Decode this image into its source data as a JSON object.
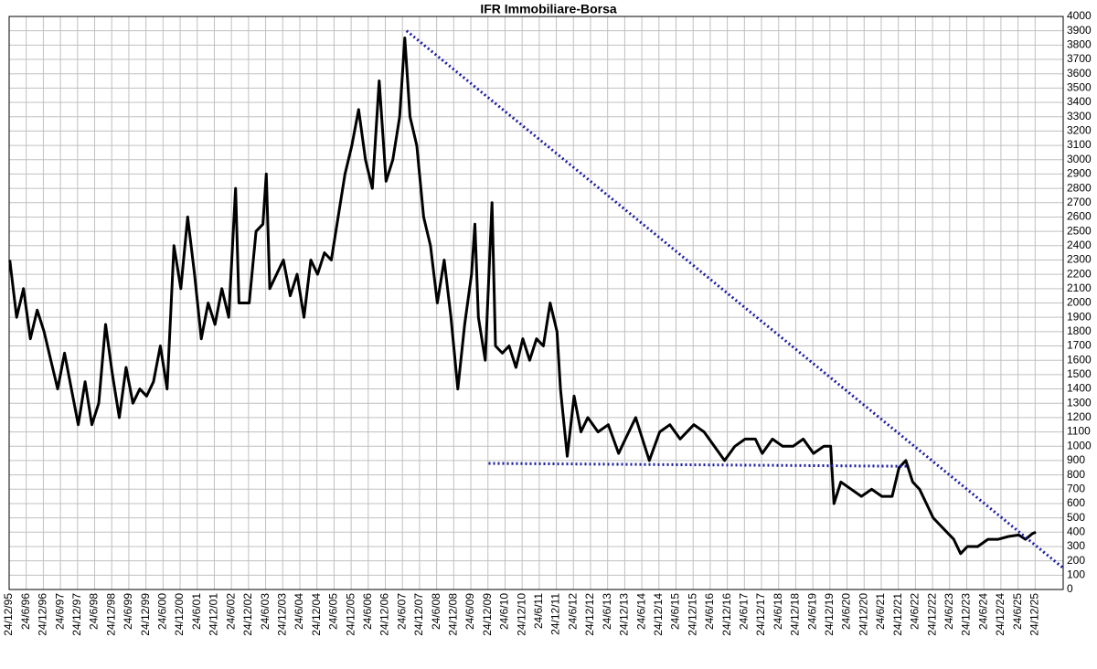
{
  "chart_data": {
    "type": "line",
    "title": "IFR Immobiliare-Borsa",
    "color": "#000000",
    "grid": true,
    "xlim": [
      1995.98,
      2026.8
    ],
    "ylim": [
      0,
      4000
    ],
    "yticks": [
      0,
      100,
      200,
      300,
      400,
      500,
      600,
      700,
      800,
      900,
      1000,
      1100,
      1200,
      1300,
      1400,
      1500,
      1600,
      1700,
      1800,
      1900,
      2000,
      2100,
      2200,
      2300,
      2400,
      2500,
      2600,
      2700,
      2800,
      2900,
      3000,
      3100,
      3200,
      3300,
      3400,
      3500,
      3600,
      3700,
      3800,
      3900,
      4000
    ],
    "xticks": [
      {
        "value": 1995.98,
        "label": "24/12/95"
      },
      {
        "value": 1996.48,
        "label": "24/6/96"
      },
      {
        "value": 1996.98,
        "label": "24/12/96"
      },
      {
        "value": 1997.48,
        "label": "24/6/97"
      },
      {
        "value": 1997.98,
        "label": "24/12/97"
      },
      {
        "value": 1998.48,
        "label": "24/6/98"
      },
      {
        "value": 1998.98,
        "label": "24/12/98"
      },
      {
        "value": 1999.48,
        "label": "24/6/99"
      },
      {
        "value": 1999.98,
        "label": "24/12/99"
      },
      {
        "value": 2000.48,
        "label": "24/6/00"
      },
      {
        "value": 2000.98,
        "label": "24/12/00"
      },
      {
        "value": 2001.48,
        "label": "24/6/01"
      },
      {
        "value": 2001.98,
        "label": "24/12/01"
      },
      {
        "value": 2002.48,
        "label": "24/6/02"
      },
      {
        "value": 2002.98,
        "label": "24/12/02"
      },
      {
        "value": 2003.48,
        "label": "24/6/03"
      },
      {
        "value": 2003.98,
        "label": "24/12/03"
      },
      {
        "value": 2004.48,
        "label": "24/6/04"
      },
      {
        "value": 2004.98,
        "label": "24/12/04"
      },
      {
        "value": 2005.48,
        "label": "24/6/05"
      },
      {
        "value": 2005.98,
        "label": "24/12/05"
      },
      {
        "value": 2006.48,
        "label": "24/6/06"
      },
      {
        "value": 2006.98,
        "label": "24/12/06"
      },
      {
        "value": 2007.48,
        "label": "24/6/07"
      },
      {
        "value": 2007.98,
        "label": "24/12/07"
      },
      {
        "value": 2008.48,
        "label": "24/6/08"
      },
      {
        "value": 2008.98,
        "label": "24/12/08"
      },
      {
        "value": 2009.48,
        "label": "24/6/09"
      },
      {
        "value": 2009.98,
        "label": "24/12/09"
      },
      {
        "value": 2010.48,
        "label": "24/6/10"
      },
      {
        "value": 2010.98,
        "label": "24/12/10"
      },
      {
        "value": 2011.48,
        "label": "24/6/11"
      },
      {
        "value": 2011.98,
        "label": "24/12/11"
      },
      {
        "value": 2012.48,
        "label": "24/6/12"
      },
      {
        "value": 2012.98,
        "label": "24/12/12"
      },
      {
        "value": 2013.48,
        "label": "24/6/13"
      },
      {
        "value": 2013.98,
        "label": "24/12/13"
      },
      {
        "value": 2014.48,
        "label": "24/6/14"
      },
      {
        "value": 2014.98,
        "label": "24/12/14"
      },
      {
        "value": 2015.48,
        "label": "24/6/15"
      },
      {
        "value": 2015.98,
        "label": "24/12/15"
      },
      {
        "value": 2016.48,
        "label": "24/6/16"
      },
      {
        "value": 2016.98,
        "label": "24/12/16"
      },
      {
        "value": 2017.48,
        "label": "24/6/17"
      },
      {
        "value": 2017.98,
        "label": "24/12/17"
      },
      {
        "value": 2018.48,
        "label": "24/6/18"
      },
      {
        "value": 2018.98,
        "label": "24/12/18"
      },
      {
        "value": 2019.48,
        "label": "24/6/19"
      },
      {
        "value": 2019.98,
        "label": "24/12/19"
      },
      {
        "value": 2020.48,
        "label": "24/6/20"
      },
      {
        "value": 2020.98,
        "label": "24/12/20"
      },
      {
        "value": 2021.48,
        "label": "24/6/21"
      },
      {
        "value": 2021.98,
        "label": "24/12/21"
      },
      {
        "value": 2022.48,
        "label": "24/6/22"
      },
      {
        "value": 2022.98,
        "label": "24/12/22"
      },
      {
        "value": 2023.48,
        "label": "24/6/23"
      },
      {
        "value": 2023.98,
        "label": "24/12/23"
      },
      {
        "value": 2024.48,
        "label": "24/6/24"
      },
      {
        "value": 2024.98,
        "label": "24/12/24"
      },
      {
        "value": 2025.48,
        "label": "24/6/25"
      },
      {
        "value": 2025.98,
        "label": "24/12/25"
      }
    ],
    "x": [
      1996.0,
      1996.2,
      1996.4,
      1996.6,
      1996.8,
      1997.0,
      1997.2,
      1997.4,
      1997.6,
      1997.8,
      1998.0,
      1998.2,
      1998.4,
      1998.6,
      1998.8,
      1999.0,
      1999.2,
      1999.4,
      1999.6,
      1999.8,
      2000.0,
      2000.2,
      2000.4,
      2000.6,
      2000.8,
      2001.0,
      2001.2,
      2001.4,
      2001.6,
      2001.8,
      2002.0,
      2002.2,
      2002.4,
      2002.6,
      2002.7,
      2003.0,
      2003.2,
      2003.4,
      2003.5,
      2003.6,
      2004.0,
      2004.2,
      2004.4,
      2004.6,
      2004.8,
      2005.0,
      2005.2,
      2005.4,
      2005.6,
      2005.8,
      2006.0,
      2006.2,
      2006.4,
      2006.6,
      2006.8,
      2007.0,
      2007.2,
      2007.4,
      2007.55,
      2007.7,
      2007.9,
      2008.1,
      2008.3,
      2008.5,
      2008.7,
      2008.9,
      2009.1,
      2009.3,
      2009.5,
      2009.6,
      2009.7,
      2009.9,
      2010.1,
      2010.2,
      2010.4,
      2010.6,
      2010.8,
      2011.0,
      2011.2,
      2011.4,
      2011.6,
      2011.8,
      2012.0,
      2012.1,
      2012.3,
      2012.5,
      2012.7,
      2012.9,
      2013.2,
      2013.5,
      2013.8,
      2014.0,
      2014.3,
      2014.5,
      2014.7,
      2015.0,
      2015.3,
      2015.6,
      2016.0,
      2016.3,
      2016.6,
      2016.9,
      2017.2,
      2017.5,
      2017.8,
      2018.0,
      2018.3,
      2018.6,
      2018.9,
      2019.2,
      2019.5,
      2019.8,
      2020.0,
      2020.1,
      2020.3,
      2020.6,
      2020.9,
      2021.2,
      2021.5,
      2021.8,
      2022.0,
      2022.2,
      2022.4,
      2022.6,
      2022.8,
      2023.0,
      2023.2,
      2023.4,
      2023.6,
      2023.8,
      2024.0,
      2024.3,
      2024.6,
      2024.9,
      2025.2,
      2025.5,
      2025.7,
      2025.9,
      2026.0
    ],
    "values": [
      2300,
      1900,
      2100,
      1750,
      1950,
      1800,
      1600,
      1400,
      1650,
      1400,
      1150,
      1450,
      1150,
      1300,
      1850,
      1500,
      1200,
      1550,
      1300,
      1400,
      1350,
      1450,
      1700,
      1400,
      2400,
      2100,
      2600,
      2200,
      1750,
      2000,
      1850,
      2100,
      1900,
      2800,
      2000,
      2000,
      2500,
      2550,
      2900,
      2100,
      2300,
      2050,
      2200,
      1900,
      2300,
      2200,
      2350,
      2300,
      2600,
      2900,
      3100,
      3350,
      3000,
      2800,
      3550,
      2850,
      3000,
      3300,
      3850,
      3300,
      3100,
      2600,
      2400,
      2000,
      2300,
      1900,
      1400,
      1850,
      2200,
      2550,
      1900,
      1600,
      2700,
      1700,
      1650,
      1700,
      1550,
      1750,
      1600,
      1750,
      1700,
      2000,
      1800,
      1400,
      930,
      1350,
      1100,
      1200,
      1100,
      1150,
      950,
      1050,
      1200,
      1050,
      900,
      1100,
      1150,
      1050,
      1150,
      1100,
      1000,
      900,
      1000,
      1050,
      1050,
      950,
      1050,
      1000,
      1000,
      1050,
      950,
      1000,
      1000,
      600,
      750,
      700,
      650,
      700,
      650,
      650,
      850,
      900,
      750,
      700,
      600,
      500,
      450,
      400,
      350,
      250,
      300,
      300,
      350,
      350,
      370,
      380,
      350,
      390,
      400
    ],
    "trendlines_color": "#1a1aa6",
    "trendlines": [
      {
        "x": [
          2007.6,
          2026.8
        ],
        "y": [
          3900,
          150
        ]
      },
      {
        "x": [
          2010.0,
          2022.3
        ],
        "y": [
          880,
          860
        ]
      }
    ]
  }
}
